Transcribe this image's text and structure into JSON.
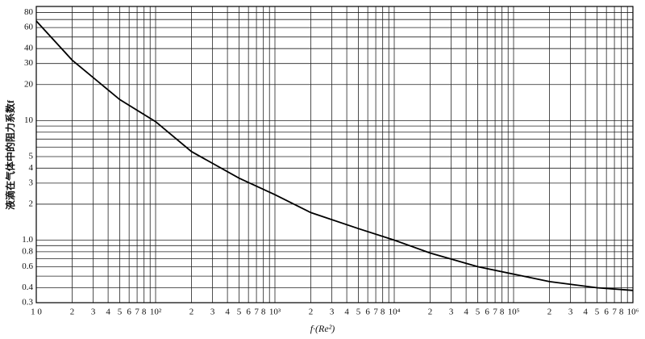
{
  "chart_data": {
    "type": "line",
    "xlabel": "f·(Re²)",
    "ylabel": "液滴在气体中的阻力系数f",
    "xscale": "log",
    "yscale": "log",
    "grid": true,
    "xlim": [
      10,
      1000000
    ],
    "ylim": [
      0.3,
      90
    ],
    "xticks": [
      {
        "value": 10,
        "label": "1 0"
      },
      {
        "value": 20,
        "label": "2"
      },
      {
        "value": 30,
        "label": "3"
      },
      {
        "value": 40,
        "label": "4"
      },
      {
        "value": 50,
        "label": "5"
      },
      {
        "value": 60,
        "label": "6"
      },
      {
        "value": 70,
        "label": "7"
      },
      {
        "value": 80,
        "label": "8"
      },
      {
        "value": 100,
        "label": "10²"
      },
      {
        "value": 200,
        "label": "2"
      },
      {
        "value": 300,
        "label": "3"
      },
      {
        "value": 400,
        "label": "4"
      },
      {
        "value": 500,
        "label": "5"
      },
      {
        "value": 600,
        "label": "6"
      },
      {
        "value": 700,
        "label": "7"
      },
      {
        "value": 800,
        "label": "8"
      },
      {
        "value": 1000,
        "label": "10³"
      },
      {
        "value": 2000,
        "label": "2"
      },
      {
        "value": 3000,
        "label": "3"
      },
      {
        "value": 4000,
        "label": "4"
      },
      {
        "value": 5000,
        "label": "5"
      },
      {
        "value": 6000,
        "label": "6"
      },
      {
        "value": 7000,
        "label": "7"
      },
      {
        "value": 8000,
        "label": "8"
      },
      {
        "value": 10000,
        "label": "10⁴"
      },
      {
        "value": 20000,
        "label": "2"
      },
      {
        "value": 30000,
        "label": "3"
      },
      {
        "value": 40000,
        "label": "4"
      },
      {
        "value": 50000,
        "label": "5"
      },
      {
        "value": 60000,
        "label": "6"
      },
      {
        "value": 70000,
        "label": "7"
      },
      {
        "value": 80000,
        "label": "8"
      },
      {
        "value": 100000,
        "label": "10⁵"
      },
      {
        "value": 200000,
        "label": "2"
      },
      {
        "value": 300000,
        "label": "3"
      },
      {
        "value": 400000,
        "label": "4"
      },
      {
        "value": 500000,
        "label": "5"
      },
      {
        "value": 600000,
        "label": "6"
      },
      {
        "value": 700000,
        "label": "7"
      },
      {
        "value": 800000,
        "label": "8"
      },
      {
        "value": 1000000,
        "label": "10⁶"
      }
    ],
    "xminor": [
      90,
      900,
      9000,
      90000,
      900000
    ],
    "yticks": [
      0.3,
      0.4,
      0.6,
      0.8,
      {
        "value": 1,
        "label": "1.0"
      },
      2,
      3,
      4,
      5,
      10,
      20,
      30,
      40,
      60,
      80
    ],
    "yminor": [
      0.5,
      0.7,
      0.9,
      6,
      7,
      8,
      9,
      50,
      70
    ],
    "series": [
      {
        "color": "#000000",
        "x": [
          10,
          20,
          50,
          100,
          200,
          500,
          1000,
          2000,
          5000,
          10000,
          20000,
          50000,
          100000,
          200000,
          500000,
          1000000
        ],
        "values": [
          68,
          32,
          15,
          9.8,
          5.5,
          3.3,
          2.4,
          1.7,
          1.25,
          1.0,
          0.78,
          0.6,
          0.52,
          0.45,
          0.4,
          0.38
        ]
      }
    ]
  }
}
